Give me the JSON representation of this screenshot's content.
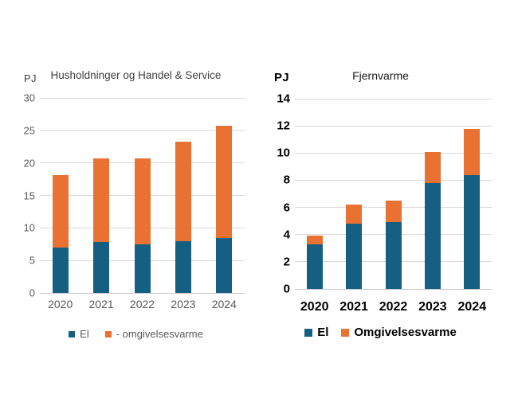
{
  "figure": {
    "background": "#FFFFFF"
  },
  "colors": {
    "el_blue": "#156082",
    "omgivelsesvarme_orange": "#E97132",
    "gridline": "#D9D9D9",
    "axis_line": "#C9C9C9",
    "left_chart_text": "#595959",
    "right_chart_text": "#000000"
  },
  "chart_data": [
    {
      "id": "husholdninger-handel-service",
      "type": "bar",
      "stacked": true,
      "title": "Husholdninger og Handel & Service",
      "unit_label": "PJ",
      "xlabel": "",
      "ylabel": "PJ",
      "ylim": [
        0,
        30
      ],
      "ytick_step": 5,
      "grid": true,
      "legend_position": "bottom",
      "categories": [
        "2020",
        "2021",
        "2022",
        "2023",
        "2024"
      ],
      "series": [
        {
          "name": "El",
          "color": "#156082",
          "values": [
            7.0,
            7.8,
            7.5,
            8.0,
            8.5
          ]
        },
        {
          "name": "- omgivelsesvarme",
          "color": "#E97132",
          "values": [
            11.1,
            12.9,
            13.2,
            15.3,
            17.2
          ]
        }
      ],
      "totals": [
        18.1,
        20.7,
        20.7,
        23.3,
        25.7
      ]
    },
    {
      "id": "fjernvarme",
      "type": "bar",
      "stacked": true,
      "title": "Fjernvarme",
      "unit_label": "PJ",
      "xlabel": "",
      "ylabel": "PJ",
      "ylim": [
        0,
        14
      ],
      "ytick_step": 2,
      "grid": true,
      "legend_position": "bottom",
      "categories": [
        "2020",
        "2021",
        "2022",
        "2023",
        "2024"
      ],
      "series": [
        {
          "name": "El",
          "color": "#156082",
          "values": [
            3.3,
            4.8,
            4.9,
            7.8,
            8.4
          ]
        },
        {
          "name": "Omgivelsesvarme",
          "color": "#E97132",
          "values": [
            0.6,
            1.4,
            1.6,
            2.3,
            3.4
          ]
        }
      ],
      "totals": [
        3.9,
        6.2,
        6.5,
        10.1,
        11.8
      ]
    }
  ]
}
